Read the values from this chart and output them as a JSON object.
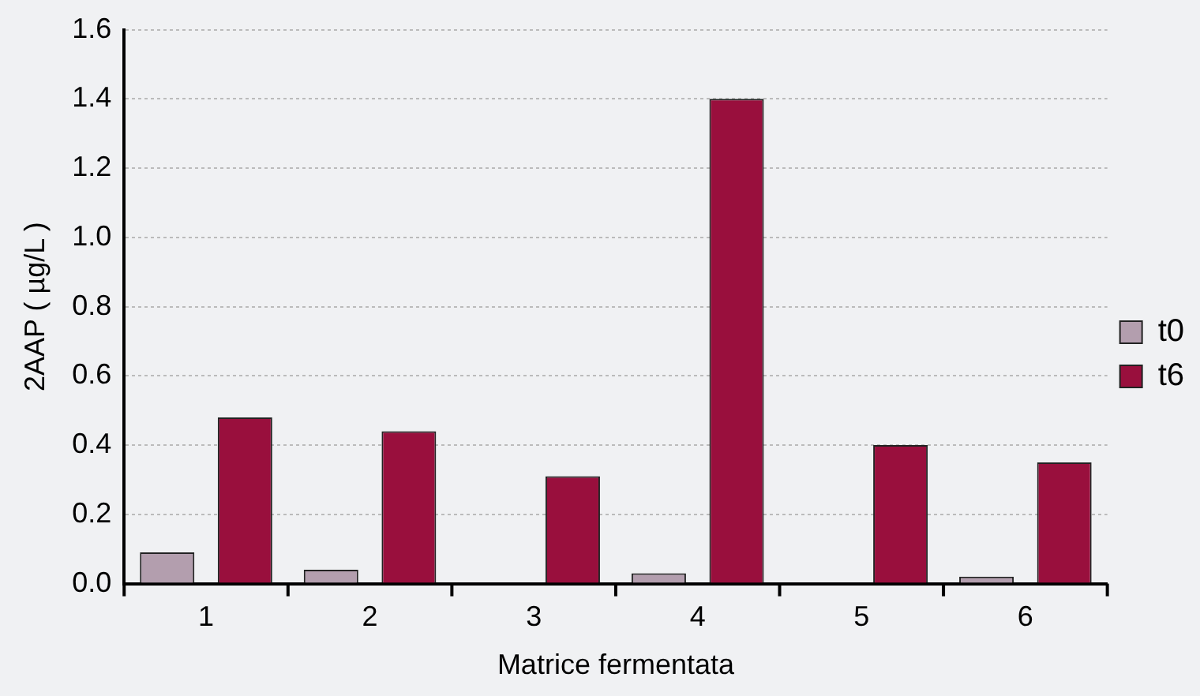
{
  "chart_data": {
    "type": "bar",
    "xlabel": "Matrice fermentata",
    "ylabel": "2AAP ( µg/L )",
    "categories": [
      "1",
      "2",
      "3",
      "4",
      "5",
      "6"
    ],
    "series": [
      {
        "name": "t0",
        "color": "#b39eae",
        "values": [
          0.09,
          0.04,
          0,
          0.03,
          0,
          0.02
        ]
      },
      {
        "name": "t6",
        "color": "#990f3d",
        "values": [
          0.48,
          0.44,
          0.31,
          1.4,
          0.4,
          0.35
        ]
      }
    ],
    "ylim": [
      0,
      1.6
    ],
    "yticks": [
      {
        "value": 0,
        "label": "0.0"
      },
      0.2,
      0.4,
      0.6,
      0.8,
      {
        "value": 1,
        "label": "1.0"
      },
      1.2,
      1.4,
      1.6
    ],
    "grid": "y",
    "legend": "right"
  }
}
